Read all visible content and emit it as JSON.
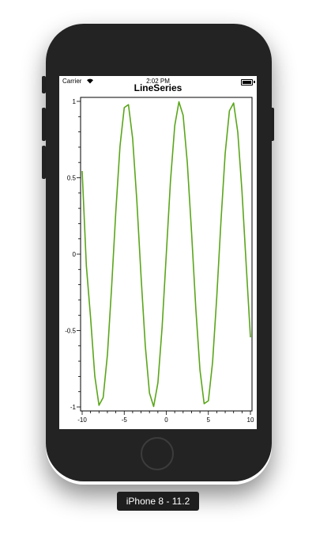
{
  "status_bar": {
    "carrier": "Carrier",
    "time": "2:02 PM",
    "wifi_icon": "wifi-icon",
    "battery_icon": "battery-icon"
  },
  "device_label": "iPhone 8 - 11.2",
  "colors": {
    "line": "#5aa61a",
    "phone_body": "#232323"
  },
  "chart_data": {
    "type": "line",
    "title": "LineSeries",
    "xlabel": "",
    "ylabel": "",
    "xlim": [
      -10,
      10
    ],
    "ylim": [
      -1,
      1
    ],
    "x_ticks": [
      -10,
      -5,
      0,
      5,
      10
    ],
    "x_tick_labels": [
      "-10",
      "-5",
      "0",
      "5",
      "10"
    ],
    "y_ticks": [
      -1,
      -0.5,
      0,
      0.5,
      1
    ],
    "y_tick_labels": [
      "-1",
      "-0.5",
      "0",
      "0.5",
      "1"
    ],
    "grid": false,
    "series": [
      {
        "x": [
          -10,
          -9.5,
          -9,
          -8.5,
          -8,
          -7.5,
          -7,
          -6.5,
          -6,
          -5.5,
          -5,
          -4.5,
          -4,
          -3.5,
          -3,
          -2.5,
          -2,
          -1.5,
          -1,
          -0.5,
          0,
          0.5,
          1,
          1.5,
          2,
          2.5,
          3,
          3.5,
          4,
          4.5,
          5,
          5.5,
          6,
          6.5,
          7,
          7.5,
          8,
          8.5,
          9,
          9.5,
          10
        ],
        "y": [
          0.544,
          -0.075,
          -0.412,
          -0.798,
          -0.989,
          -0.938,
          -0.657,
          -0.215,
          0.279,
          0.706,
          0.959,
          0.978,
          0.757,
          0.351,
          -0.141,
          -0.598,
          -0.909,
          -0.997,
          -0.841,
          -0.479,
          0,
          0.479,
          0.841,
          0.997,
          0.909,
          0.598,
          0.141,
          -0.351,
          -0.757,
          -0.978,
          -0.959,
          -0.706,
          -0.279,
          0.215,
          0.657,
          0.938,
          0.989,
          0.798,
          0.412,
          -0.075,
          -0.544
        ]
      }
    ]
  }
}
